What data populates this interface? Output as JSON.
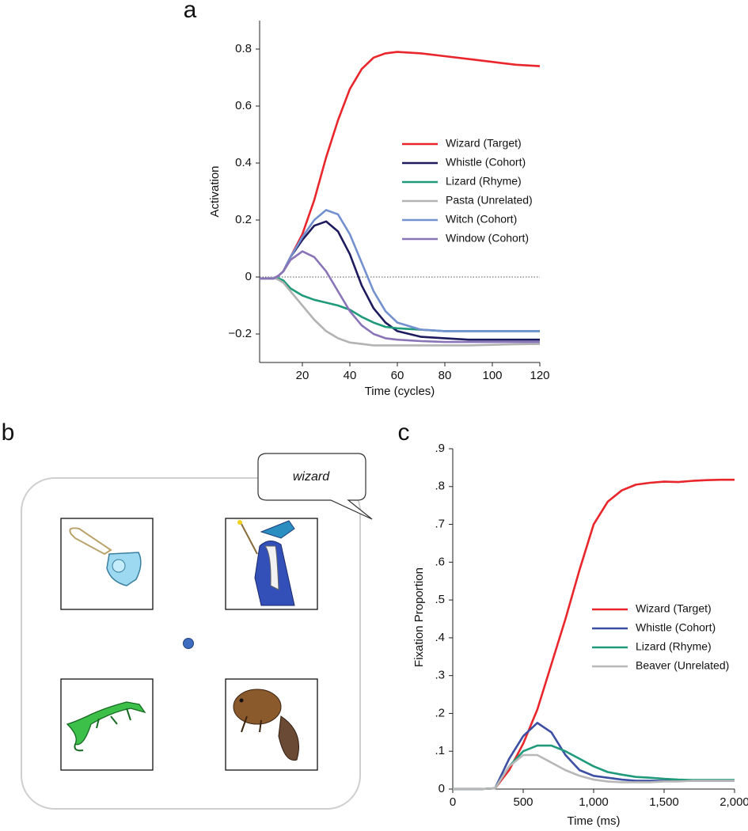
{
  "panel_labels": [
    "a",
    "b",
    "c"
  ],
  "display": {
    "speech": "wizard"
  },
  "chart_data": [
    {
      "type": "line",
      "xlabel": "Time (cycles)",
      "ylabel": "Activation",
      "x": [
        2,
        5,
        8,
        10,
        12,
        15,
        20,
        25,
        30,
        35,
        40,
        45,
        50,
        55,
        60,
        70,
        80,
        90,
        100,
        110,
        120
      ],
      "xlim": [
        2,
        120
      ],
      "ylim": [
        -0.3,
        0.9
      ],
      "xticks": [
        20,
        40,
        60,
        80,
        100,
        120
      ],
      "yticks": [
        {
          "value": -0.2,
          "label": "−0.2"
        },
        0,
        0.2,
        0.4,
        0.6,
        0.8
      ],
      "ref_line": 0,
      "legend": "right",
      "series": [
        {
          "name": "Wizard (Target)",
          "color": "#e8262b",
          "values": [
            -0.005,
            -0.005,
            -0.005,
            0.005,
            0.02,
            0.07,
            0.15,
            0.27,
            0.42,
            0.55,
            0.66,
            0.73,
            0.77,
            0.785,
            0.79,
            0.785,
            0.775,
            0.765,
            0.755,
            0.745,
            0.74
          ]
        },
        {
          "name": "Whistle (Cohort)",
          "color": "#1d1a5e",
          "values": [
            -0.005,
            -0.005,
            -0.005,
            0.005,
            0.02,
            0.07,
            0.13,
            0.18,
            0.195,
            0.16,
            0.08,
            -0.03,
            -0.11,
            -0.16,
            -0.19,
            -0.21,
            -0.215,
            -0.22,
            -0.22,
            -0.22,
            -0.22
          ]
        },
        {
          "name": "Lizard (Rhyme)",
          "color": "#1f9a7a",
          "values": [
            -0.005,
            -0.005,
            -0.003,
            -0.005,
            -0.012,
            -0.04,
            -0.065,
            -0.08,
            -0.09,
            -0.1,
            -0.115,
            -0.14,
            -0.16,
            -0.175,
            -0.18,
            -0.185,
            -0.19,
            -0.19,
            -0.19,
            -0.19,
            -0.19
          ]
        },
        {
          "name": "Pasta (Unrelated)",
          "color": "#b3b3b3",
          "values": [
            -0.005,
            -0.005,
            -0.003,
            -0.01,
            -0.02,
            -0.05,
            -0.1,
            -0.15,
            -0.19,
            -0.215,
            -0.23,
            -0.235,
            -0.24,
            -0.24,
            -0.24,
            -0.24,
            -0.24,
            -0.24,
            -0.238,
            -0.236,
            -0.235
          ]
        },
        {
          "name": "Witch (Cohort)",
          "color": "#7390cf",
          "values": [
            -0.005,
            -0.005,
            -0.005,
            0.005,
            0.02,
            0.07,
            0.14,
            0.2,
            0.235,
            0.22,
            0.15,
            0.05,
            -0.05,
            -0.12,
            -0.16,
            -0.185,
            -0.19,
            -0.19,
            -0.19,
            -0.19,
            -0.19
          ]
        },
        {
          "name": "Window (Cohort)",
          "color": "#8a74b8",
          "values": [
            -0.005,
            -0.005,
            -0.005,
            0.005,
            0.02,
            0.06,
            0.09,
            0.07,
            0.02,
            -0.05,
            -0.12,
            -0.17,
            -0.2,
            -0.215,
            -0.22,
            -0.225,
            -0.228,
            -0.228,
            -0.228,
            -0.228,
            -0.228
          ]
        }
      ]
    },
    {
      "type": "line",
      "xlabel": "Time (ms)",
      "ylabel": "Fixation Proportion",
      "x": [
        0,
        100,
        200,
        300,
        400,
        500,
        600,
        700,
        800,
        900,
        1000,
        1100,
        1200,
        1300,
        1400,
        1500,
        1600,
        1700,
        1800,
        1900,
        2000
      ],
      "xlim": [
        0,
        2000
      ],
      "ylim": [
        0,
        0.9
      ],
      "xticks": [
        0,
        500,
        {
          "value": 1000,
          "label": "1,000"
        },
        {
          "value": 1500,
          "label": "1,500"
        },
        {
          "value": 2000,
          "label": "2,000"
        }
      ],
      "yticks": [
        0,
        {
          "value": 0.1,
          "label": ".1"
        },
        {
          "value": 0.2,
          "label": ".2"
        },
        {
          "value": 0.3,
          "label": ".3"
        },
        {
          "value": 0.4,
          "label": ".4"
        },
        {
          "value": 0.5,
          "label": ".5"
        },
        {
          "value": 0.6,
          "label": ".6"
        },
        {
          "value": 0.7,
          "label": ".7"
        },
        {
          "value": 0.8,
          "label": ".8"
        },
        {
          "value": 0.9,
          "label": ".9"
        }
      ],
      "legend": "right",
      "series": [
        {
          "name": "Wizard (Target)",
          "color": "#e8262b",
          "values": [
            0,
            0,
            0,
            0.002,
            0.05,
            0.12,
            0.21,
            0.33,
            0.45,
            0.58,
            0.7,
            0.76,
            0.79,
            0.805,
            0.81,
            0.813,
            0.812,
            0.815,
            0.817,
            0.818,
            0.818
          ]
        },
        {
          "name": "Whistle (Cohort)",
          "color": "#3c4fa3",
          "values": [
            0,
            0,
            0,
            0.002,
            0.08,
            0.14,
            0.175,
            0.15,
            0.09,
            0.05,
            0.035,
            0.03,
            0.025,
            0.022,
            0.022,
            0.022,
            0.022,
            0.022,
            0.022,
            0.022,
            0.022
          ]
        },
        {
          "name": "Lizard (Rhyme)",
          "color": "#1f9a7a",
          "values": [
            0,
            0,
            0,
            0.002,
            0.06,
            0.1,
            0.115,
            0.115,
            0.1,
            0.08,
            0.06,
            0.045,
            0.038,
            0.032,
            0.03,
            0.027,
            0.025,
            0.024,
            0.024,
            0.024,
            0.024
          ]
        },
        {
          "name": "Beaver (Unrelated)",
          "color": "#b8b8b8",
          "values": [
            0,
            0,
            0,
            0.002,
            0.06,
            0.09,
            0.09,
            0.07,
            0.05,
            0.035,
            0.025,
            0.02,
            0.018,
            0.018,
            0.018,
            0.02,
            0.02,
            0.022,
            0.022,
            0.022,
            0.022
          ]
        }
      ]
    }
  ]
}
